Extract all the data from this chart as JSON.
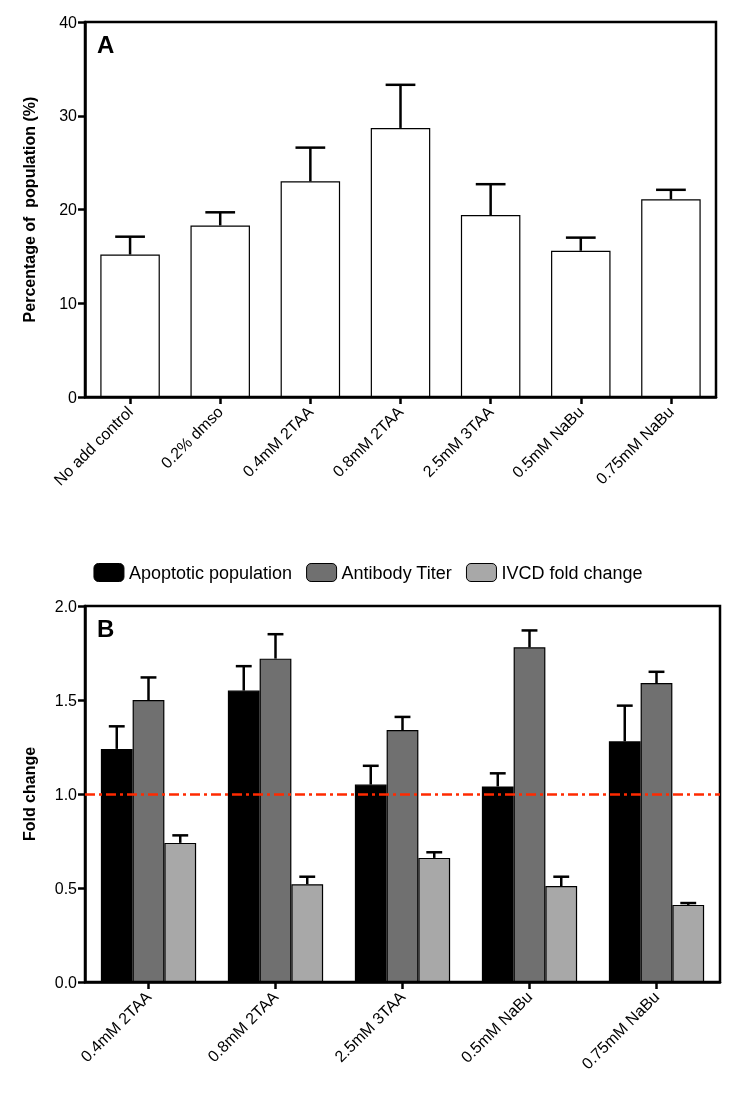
{
  "chart_data": [
    {
      "type": "bar",
      "ylabel": "Percentage of  population (%)",
      "annotations": [
        "A"
      ],
      "categories": [
        "No add control",
        "0.2% dmso",
        "0.4mM 2TAA",
        "0.8mM 2TAA",
        "2.5mM 3TAA",
        "0.5mM NaBu",
        "0.75mM NaBu"
      ],
      "values": [
        15.2,
        18.3,
        23.0,
        28.7,
        19.4,
        15.6,
        21.1
      ],
      "errors": [
        1.9,
        1.4,
        3.6,
        4.6,
        3.3,
        1.4,
        1.0
      ],
      "color": "#ffffff",
      "ylim": [
        0,
        40
      ],
      "yticks": [
        0,
        10,
        20,
        30,
        40
      ],
      "grid": false
    },
    {
      "type": "bar",
      "ylabel": "Fold change",
      "annotations": [
        "B"
      ],
      "legend": "top",
      "categories": [
        "0.4mM 2TAA",
        "0.8mM 2TAA",
        "2.5mM 3TAA",
        "0.5mM NaBu",
        "0.75mM NaBu"
      ],
      "series": [
        {
          "name": "Apoptotic population",
          "color": "#000000",
          "values": [
            1.24,
            1.55,
            1.05,
            1.04,
            1.28
          ],
          "errors": [
            0.12,
            0.13,
            0.1,
            0.07,
            0.19
          ]
        },
        {
          "name": "Antibody Titer",
          "color": "#707070",
          "values": [
            1.5,
            1.72,
            1.34,
            1.78,
            1.59
          ],
          "errors": [
            0.12,
            0.13,
            0.07,
            0.09,
            0.06
          ]
        },
        {
          "name": "IVCD fold change",
          "color": "#a8a8a8",
          "values": [
            0.74,
            0.52,
            0.66,
            0.51,
            0.41
          ],
          "errors": [
            0.04,
            0.04,
            0.03,
            0.05,
            0.01
          ]
        }
      ],
      "ylim": [
        0,
        2
      ],
      "yticks": [
        {
          "value": 0,
          "label": "0.0"
        },
        {
          "value": 0.5,
          "label": "0.5"
        },
        {
          "value": 1,
          "label": "1.0"
        },
        {
          "value": 1.5,
          "label": "1.5"
        },
        {
          "value": 2,
          "label": "2.0"
        }
      ],
      "ref_lines": [
        {
          "axis": "y",
          "value": 1,
          "color": "#ff2a00",
          "line_style": "dashed"
        }
      ],
      "grid": false
    }
  ]
}
